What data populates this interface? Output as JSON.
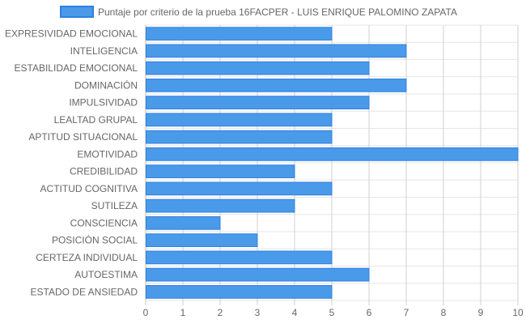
{
  "chart_data": {
    "type": "bar",
    "orientation": "horizontal",
    "title": "",
    "xlabel": "",
    "ylabel": "",
    "xlim": [
      0,
      10
    ],
    "ticks": [
      "0",
      "1",
      "2",
      "3",
      "4",
      "5",
      "6",
      "7",
      "8",
      "9",
      "10"
    ],
    "grid": true,
    "legend_position": "top",
    "bar_color": "#4a9aea",
    "bar_border_color": "#2f80e0",
    "categories": [
      "EXPRESIVIDAD EMOCIONAL",
      "INTELIGENCIA",
      "ESTABILIDAD EMOCIONAL",
      "DOMINACIÓN",
      "IMPULSIVIDAD",
      "LEALTAD GRUPAL",
      "APTITUD SITUACIONAL",
      "EMOTIVIDAD",
      "CREDIBILIDAD",
      "ACTITUD COGNITIVA",
      "SUTILEZA",
      "CONSCIENCIA",
      "POSICIÓN SOCIAL",
      "CERTEZA INDIVIDUAL",
      "AUTOESTIMA",
      "ESTADO DE ANSIEDAD"
    ],
    "series": [
      {
        "name": "Puntaje por criterio de la prueba 16FACPER - LUIS ENRIQUE PALOMINO ZAPATA",
        "values": [
          5,
          7,
          6,
          7,
          6,
          5,
          5,
          10,
          4,
          5,
          4,
          2,
          3,
          5,
          6,
          5
        ]
      }
    ]
  }
}
